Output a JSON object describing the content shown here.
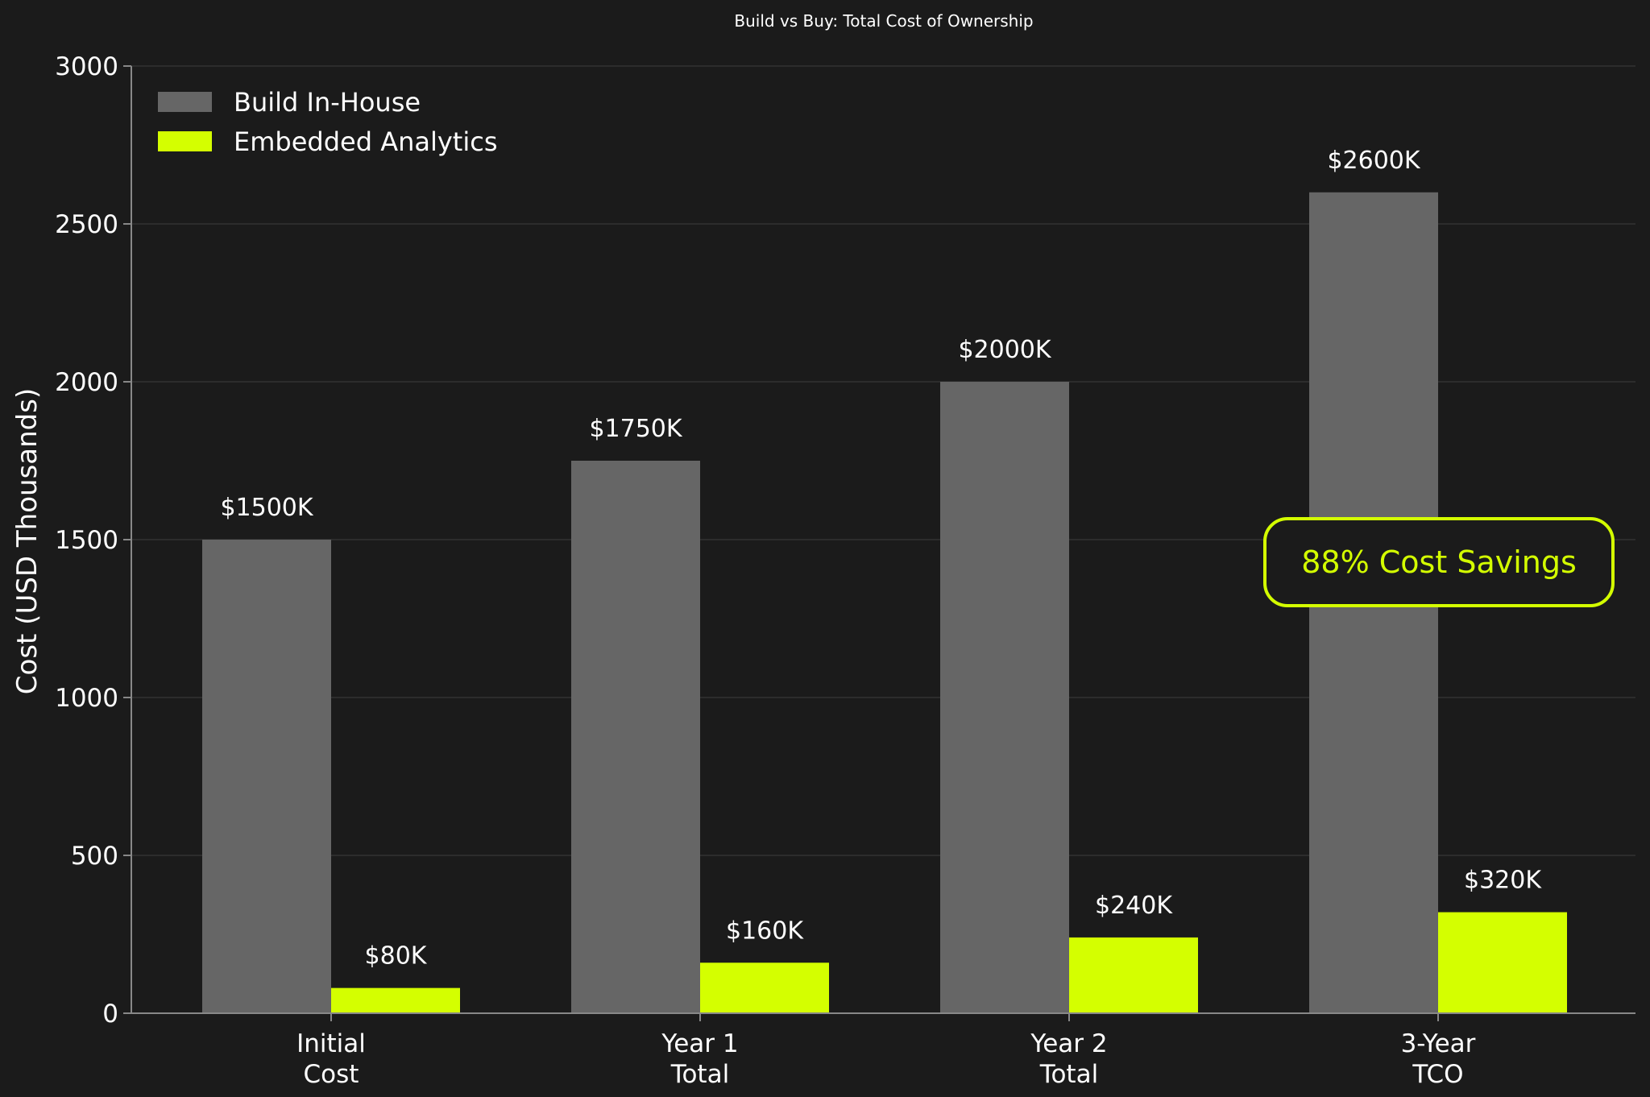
{
  "chart_data": {
    "type": "bar",
    "title": "Build vs Buy: Total Cost of Ownership",
    "xlabel": "",
    "ylabel": "Cost (USD Thousands)",
    "ylim": [
      0,
      3000
    ],
    "yticks": [
      0,
      500,
      1000,
      1500,
      2000,
      2500,
      3000
    ],
    "grid": true,
    "legend_position": "top-left",
    "categories": [
      [
        "Initial",
        "Cost"
      ],
      [
        "Year 1",
        "Total"
      ],
      [
        "Year 2",
        "Total"
      ],
      [
        "3-Year",
        "TCO"
      ]
    ],
    "series": [
      {
        "name": "Build In-House",
        "color": "#666666",
        "values": [
          1500,
          1750,
          2000,
          2600
        ],
        "labels": [
          "$1500K",
          "$1750K",
          "$2000K",
          "$2600K"
        ]
      },
      {
        "name": "Embedded Analytics",
        "color": "#d4ff00",
        "values": [
          80,
          160,
          240,
          320
        ],
        "labels": [
          "$80K",
          "$160K",
          "$240K",
          "$320K"
        ]
      }
    ],
    "annotation": {
      "text": "88% Cost Savings",
      "color": "#d4ff00"
    }
  },
  "colors": {
    "background": "#1b1b1b",
    "grid": "#333333",
    "axis": "#888888",
    "text": "#ffffff"
  }
}
